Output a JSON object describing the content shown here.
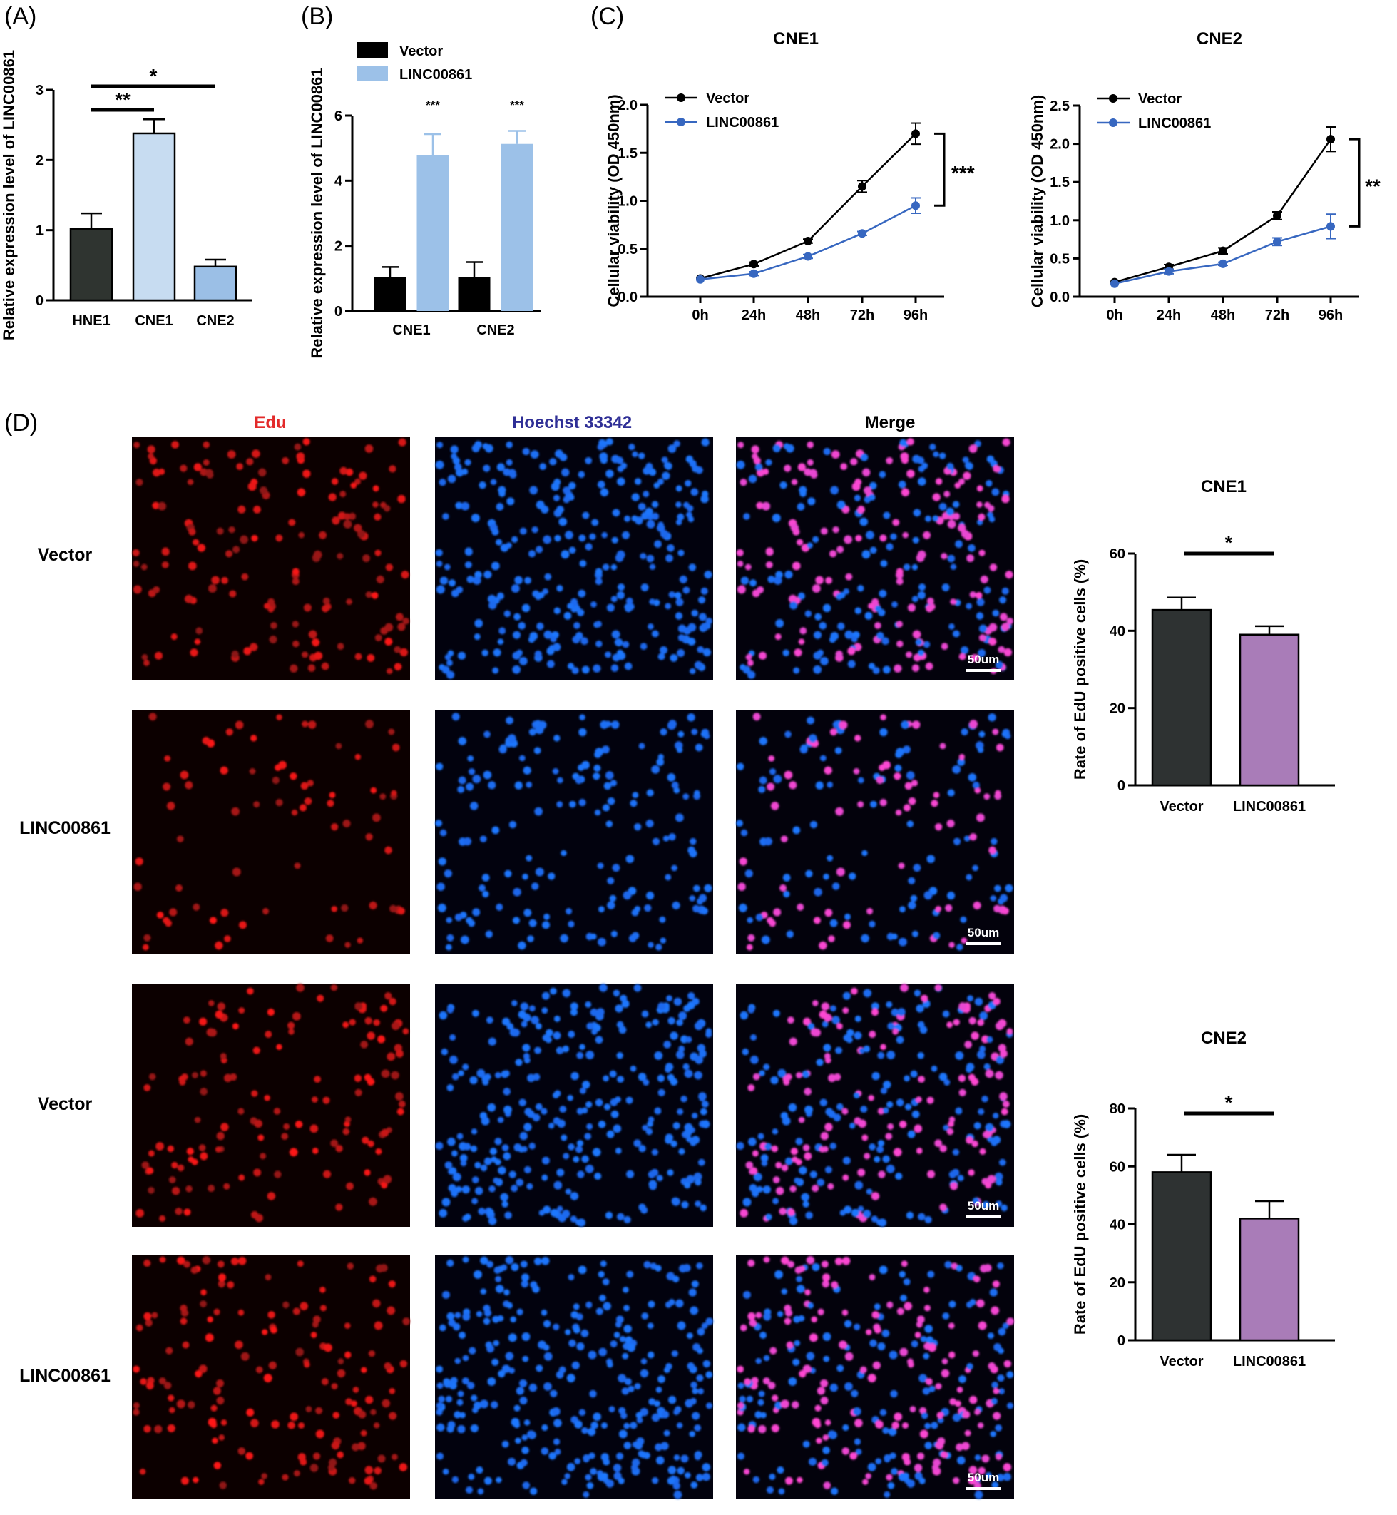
{
  "panel_labels": {
    "a": "(A)",
    "b": "(B)",
    "c": "(C)",
    "d": "(D)"
  },
  "colors": {
    "hne1": "#2f3430",
    "cne1_light": "#c7dcf1",
    "cne2_light": "#9bbfe6",
    "vector_dark": "#000000",
    "linc_blue": "#9cc1e8",
    "line_vector": "#000000",
    "line_linc": "#3767c0",
    "edu_vector": "#2e3232",
    "edu_linc": "#a97cb8",
    "edu_label": "#e32a2a",
    "hoechst_label": "#2f2f96",
    "merge_label": "#000000"
  },
  "micrographs": {
    "col_headers": [
      "Edu",
      "Hoechst 33342",
      "Merge"
    ],
    "row_labels": [
      "Vector",
      "LINC00861",
      "Vector",
      "LINC00861"
    ],
    "scale_bar": "50um"
  },
  "chart_data": [
    {
      "id": "A",
      "type": "bar",
      "categories": [
        "HNE1",
        "CNE1",
        "CNE2"
      ],
      "values": [
        1.02,
        2.38,
        0.48
      ],
      "errors": [
        0.22,
        0.2,
        0.1
      ],
      "ylabel": "Relative expression level of LINC00861",
      "ylim": [
        0,
        3
      ],
      "yticks": [
        "0",
        "1",
        "2",
        "3"
      ],
      "significance": [
        {
          "groups": [
            "HNE1",
            "CNE1"
          ],
          "label": "**"
        },
        {
          "groups": [
            "HNE1",
            "CNE2"
          ],
          "label": "*"
        }
      ]
    },
    {
      "id": "B",
      "type": "bar",
      "categories": [
        "CNE1",
        "CNE2"
      ],
      "series": [
        {
          "name": "Vector",
          "values": [
            1.03,
            1.05
          ],
          "errors": [
            0.32,
            0.45
          ]
        },
        {
          "name": "LINC00861",
          "values": [
            4.78,
            5.13
          ],
          "errors": [
            0.65,
            0.4
          ]
        }
      ],
      "ylabel": "Relative expression level of LINC00861",
      "ylim": [
        0,
        6
      ],
      "yticks": [
        "0",
        "2",
        "4",
        "6"
      ],
      "significance": [
        "***",
        "***"
      ]
    },
    {
      "id": "C1",
      "type": "line",
      "title": "CNE1",
      "x": [
        "0h",
        "24h",
        "48h",
        "72h",
        "96h"
      ],
      "series": [
        {
          "name": "Vector",
          "values": [
            0.19,
            0.34,
            0.58,
            1.15,
            1.7
          ],
          "errors": [
            0.01,
            0.02,
            0.02,
            0.06,
            0.11
          ]
        },
        {
          "name": "LINC00861",
          "values": [
            0.18,
            0.24,
            0.42,
            0.66,
            0.95
          ],
          "errors": [
            0.01,
            0.02,
            0.02,
            0.02,
            0.08
          ]
        }
      ],
      "ylabel": "Cellular viability (OD 450nm)",
      "ylim": [
        0,
        2
      ],
      "yticks": [
        "0.0",
        "0.5",
        "1.0",
        "1.5",
        "2.0"
      ],
      "significance": "***"
    },
    {
      "id": "C2",
      "type": "line",
      "title": "CNE2",
      "x": [
        "0h",
        "24h",
        "48h",
        "72h",
        "96h"
      ],
      "series": [
        {
          "name": "Vector",
          "values": [
            0.19,
            0.39,
            0.6,
            1.06,
            2.06
          ],
          "errors": [
            0.01,
            0.03,
            0.04,
            0.05,
            0.16
          ]
        },
        {
          "name": "LINC00861",
          "values": [
            0.17,
            0.33,
            0.43,
            0.72,
            0.92
          ],
          "errors": [
            0.01,
            0.03,
            0.02,
            0.05,
            0.16
          ]
        }
      ],
      "ylabel": "Cellular viability (OD 450nm)",
      "ylim": [
        0,
        2.5
      ],
      "yticks": [
        "0.0",
        "0.5",
        "1.0",
        "1.5",
        "2.0",
        "2.5"
      ],
      "significance": "**"
    },
    {
      "id": "D1",
      "type": "bar",
      "title": "CNE1",
      "categories": [
        "Vector",
        "LINC00861"
      ],
      "values": [
        45.4,
        39
      ],
      "errors": [
        3.2,
        2.2
      ],
      "ylabel": "Rate of EdU positive cells (%)",
      "ylim": [
        0,
        60
      ],
      "yticks": [
        "0",
        "20",
        "40",
        "60"
      ],
      "significance": "*"
    },
    {
      "id": "D2",
      "type": "bar",
      "title": "CNE2",
      "categories": [
        "Vector",
        "LINC00861"
      ],
      "values": [
        58,
        42
      ],
      "errors": [
        6,
        6
      ],
      "ylabel": "Rate of EdU positive cells (%)",
      "ylim": [
        0,
        80
      ],
      "yticks": [
        "0",
        "20",
        "40",
        "60",
        "80"
      ],
      "significance": "*"
    }
  ]
}
